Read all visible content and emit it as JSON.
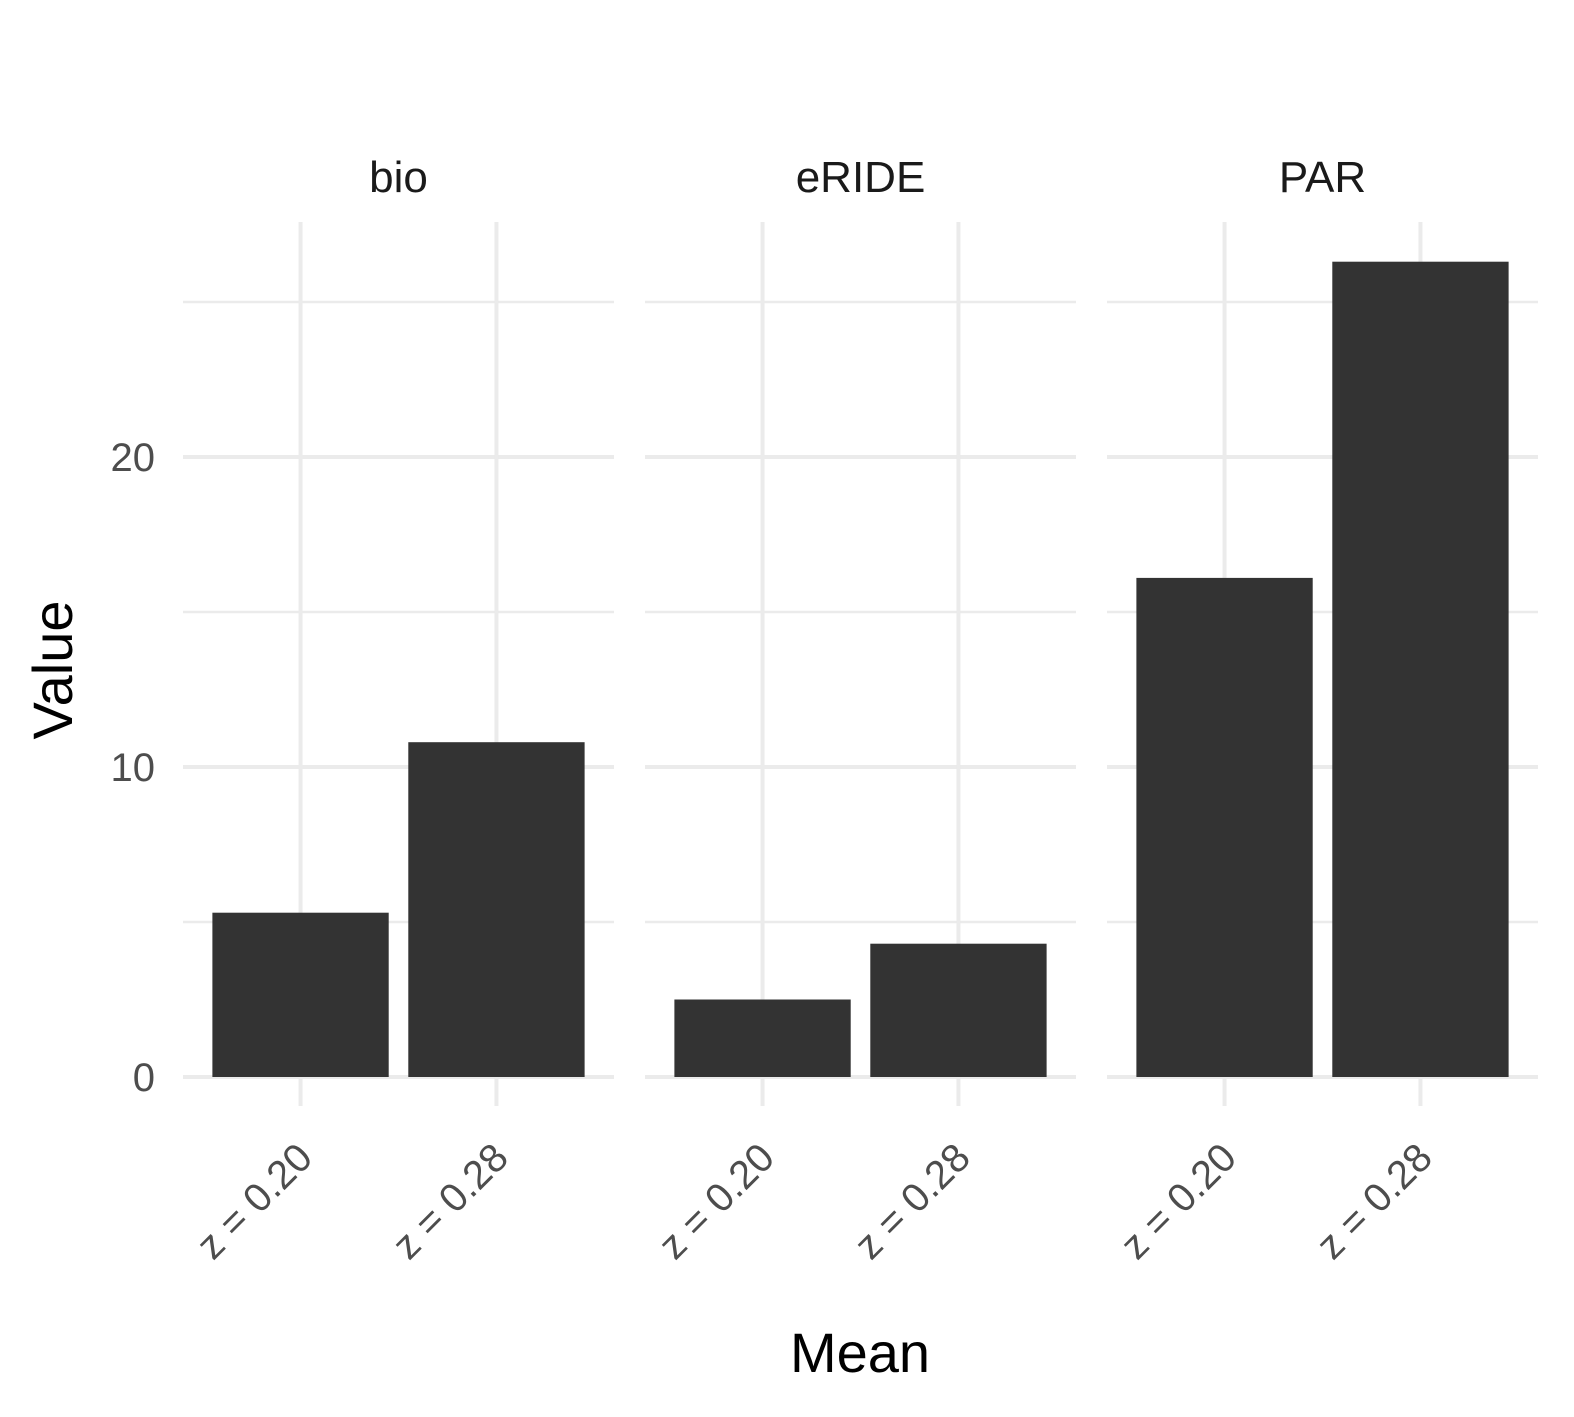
{
  "chart_data": {
    "type": "bar",
    "facets": [
      "bio",
      "eRIDE",
      "PAR"
    ],
    "categories": [
      "z = 0.20",
      "z = 0.28"
    ],
    "series": [
      {
        "facet": "bio",
        "values": [
          5.3,
          10.8
        ]
      },
      {
        "facet": "eRIDE",
        "values": [
          2.5,
          4.3
        ]
      },
      {
        "facet": "PAR",
        "values": [
          16.1,
          26.3
        ]
      }
    ],
    "xlabel": "Mean",
    "ylabel": "Value",
    "ylim": [
      0,
      27.5
    ],
    "yticks": [
      0,
      10,
      20
    ],
    "bar_color": "#333333",
    "grid": true,
    "theme": "minimal"
  }
}
